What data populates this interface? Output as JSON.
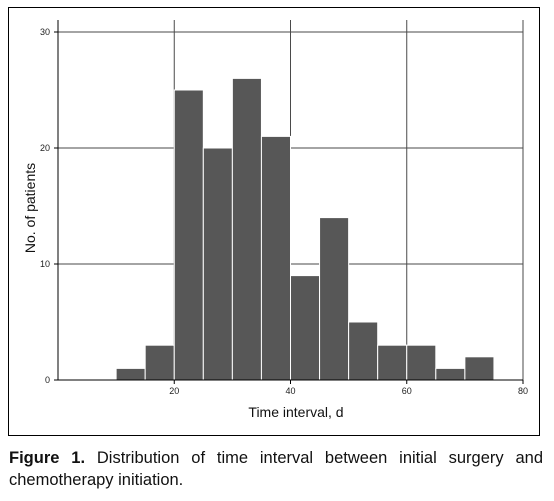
{
  "caption": {
    "label": "Figure 1.",
    "text": "Distribution of time interval between initial surgery and chemotherapy initiation."
  },
  "colors": {
    "bar": "#575757",
    "bar_edge": "#ffffff",
    "grid": "#4a4a4a",
    "axis": "#000000"
  },
  "chart_data": {
    "type": "bar",
    "title": "",
    "xlabel": "Time interval, d",
    "ylabel": "No. of patients",
    "xlim": [
      0,
      80
    ],
    "ylim": [
      0,
      30
    ],
    "xticks": [
      20,
      40,
      60,
      80
    ],
    "yticks": [
      0,
      10,
      20,
      30
    ],
    "grid": true,
    "bin_width": 5,
    "bins": [
      {
        "start": 10,
        "end": 15,
        "count": 1
      },
      {
        "start": 15,
        "end": 20,
        "count": 3
      },
      {
        "start": 20,
        "end": 25,
        "count": 25
      },
      {
        "start": 25,
        "end": 30,
        "count": 20
      },
      {
        "start": 30,
        "end": 35,
        "count": 26
      },
      {
        "start": 35,
        "end": 40,
        "count": 21
      },
      {
        "start": 40,
        "end": 45,
        "count": 9
      },
      {
        "start": 45,
        "end": 50,
        "count": 14
      },
      {
        "start": 50,
        "end": 55,
        "count": 5
      },
      {
        "start": 55,
        "end": 60,
        "count": 3
      },
      {
        "start": 60,
        "end": 65,
        "count": 3
      },
      {
        "start": 65,
        "end": 70,
        "count": 1
      },
      {
        "start": 70,
        "end": 75,
        "count": 2
      }
    ]
  }
}
